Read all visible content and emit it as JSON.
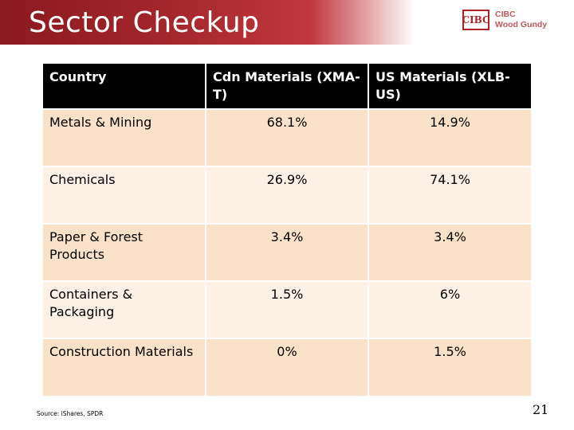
{
  "slide": {
    "title": "Sector Checkup",
    "logo_mark": "CIBC",
    "logo_line1": "CIBC",
    "logo_line2": "Wood Gundy",
    "source": "Source: iShares, SPDR",
    "page_number": "21"
  },
  "table": {
    "headers": [
      "Country",
      "Cdn Materials (XMA-T)",
      "US Materials (XLB-US)"
    ],
    "rows": [
      [
        "Metals & Mining",
        "68.1%",
        "14.9%"
      ],
      [
        "Chemicals",
        "26.9%",
        "74.1%"
      ],
      [
        "Paper & Forest Products",
        "3.4%",
        "3.4%"
      ],
      [
        "Containers & Packaging",
        "1.5%",
        "6%"
      ],
      [
        "Construction Materials",
        "0%",
        "1.5%"
      ]
    ]
  },
  "colors": {
    "title_band": "#a3262b",
    "header_bg": "#000000",
    "row_odd_bg": "#f9e2c7",
    "row_even_bg": "#fcf1e4",
    "brand_red": "#b22128"
  }
}
